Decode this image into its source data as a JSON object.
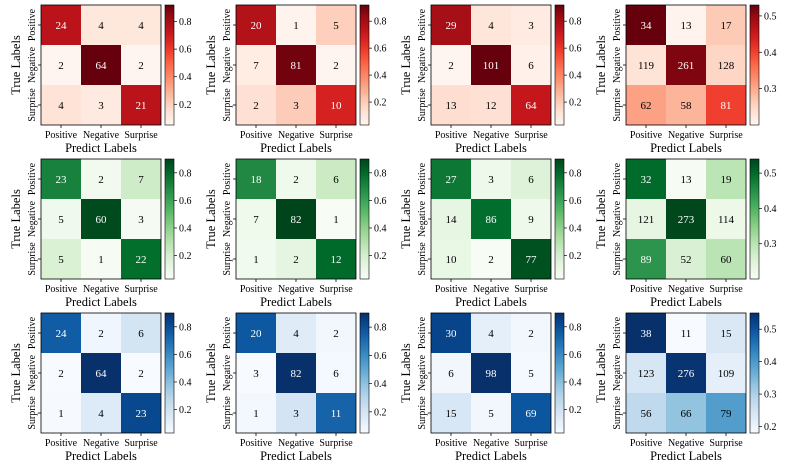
{
  "chart_data": {
    "type": "heatmap",
    "layout": {
      "rows": 3,
      "cols": 4
    },
    "common": {
      "xlabel": "Predict Labels",
      "ylabel": "True Labels",
      "categories": [
        "Positive",
        "Negative",
        "Surprise"
      ]
    },
    "colormaps": [
      "red",
      "green",
      "blue"
    ],
    "panels": [
      {
        "colormap": "red",
        "matrix": [
          [
            24,
            4,
            4
          ],
          [
            2,
            64,
            2
          ],
          [
            4,
            3,
            21
          ]
        ],
        "vrange": [
          0.05,
          0.92
        ],
        "colorbar_ticks": [
          "0.2",
          "0.4",
          "0.6",
          "0.8"
        ]
      },
      {
        "colormap": "red",
        "matrix": [
          [
            20,
            1,
            5
          ],
          [
            7,
            81,
            2
          ],
          [
            2,
            3,
            10
          ]
        ],
        "vrange": [
          0.03,
          0.92
        ],
        "colorbar_ticks": [
          "0.2",
          "0.4",
          "0.6",
          "0.8"
        ]
      },
      {
        "colormap": "red",
        "matrix": [
          [
            29,
            4,
            3
          ],
          [
            2,
            101,
            6
          ],
          [
            13,
            12,
            64
          ]
        ],
        "vrange": [
          0.03,
          0.92
        ],
        "colorbar_ticks": [
          "0.2",
          "0.4",
          "0.6",
          "0.8"
        ]
      },
      {
        "colormap": "red",
        "matrix": [
          [
            34,
            13,
            17
          ],
          [
            119,
            261,
            128
          ],
          [
            62,
            58,
            81
          ]
        ],
        "vrange": [
          0.2,
          0.53
        ],
        "colorbar_ticks": [
          "0.3",
          "0.4",
          "0.5"
        ]
      },
      {
        "colormap": "green",
        "matrix": [
          [
            23,
            2,
            7
          ],
          [
            5,
            60,
            3
          ],
          [
            5,
            1,
            22
          ]
        ],
        "vrange": [
          0.03,
          0.9
        ],
        "colorbar_ticks": [
          "0.2",
          "0.4",
          "0.6",
          "0.8"
        ]
      },
      {
        "colormap": "green",
        "matrix": [
          [
            18,
            2,
            6
          ],
          [
            7,
            82,
            1
          ],
          [
            1,
            2,
            12
          ]
        ],
        "vrange": [
          0.03,
          0.9
        ],
        "colorbar_ticks": [
          "0.2",
          "0.4",
          "0.6",
          "0.8"
        ]
      },
      {
        "colormap": "green",
        "matrix": [
          [
            27,
            3,
            6
          ],
          [
            14,
            86,
            9
          ],
          [
            10,
            2,
            77
          ]
        ],
        "vrange": [
          0.03,
          0.9
        ],
        "colorbar_ticks": [
          "0.2",
          "0.4",
          "0.6",
          "0.8"
        ]
      },
      {
        "colormap": "green",
        "matrix": [
          [
            32,
            13,
            19
          ],
          [
            121,
            273,
            114
          ],
          [
            89,
            52,
            60
          ]
        ],
        "vrange": [
          0.2,
          0.54
        ],
        "colorbar_ticks": [
          "0.3",
          "0.4",
          "0.5"
        ]
      },
      {
        "colormap": "blue",
        "matrix": [
          [
            24,
            2,
            6
          ],
          [
            2,
            64,
            2
          ],
          [
            1,
            4,
            23
          ]
        ],
        "vrange": [
          0.03,
          0.9
        ],
        "colorbar_ticks": [
          "0.2",
          "0.4",
          "0.6",
          "0.8"
        ]
      },
      {
        "colormap": "blue",
        "matrix": [
          [
            20,
            4,
            2
          ],
          [
            3,
            82,
            6
          ],
          [
            1,
            3,
            11
          ]
        ],
        "vrange": [
          0.05,
          0.9
        ],
        "colorbar_ticks": [
          "0.2",
          "0.4",
          "0.6",
          "0.8"
        ]
      },
      {
        "colormap": "blue",
        "matrix": [
          [
            30,
            4,
            2
          ],
          [
            6,
            98,
            5
          ],
          [
            15,
            5,
            69
          ]
        ],
        "vrange": [
          0.03,
          0.9
        ],
        "colorbar_ticks": [
          "0.2",
          "0.4",
          "0.6",
          "0.8"
        ]
      },
      {
        "colormap": "blue",
        "matrix": [
          [
            38,
            11,
            15
          ],
          [
            123,
            276,
            109
          ],
          [
            56,
            66,
            79
          ]
        ],
        "vrange": [
          0.18,
          0.55
        ],
        "colorbar_ticks": [
          "0.2",
          "0.3",
          "0.4",
          "0.5"
        ]
      }
    ]
  }
}
